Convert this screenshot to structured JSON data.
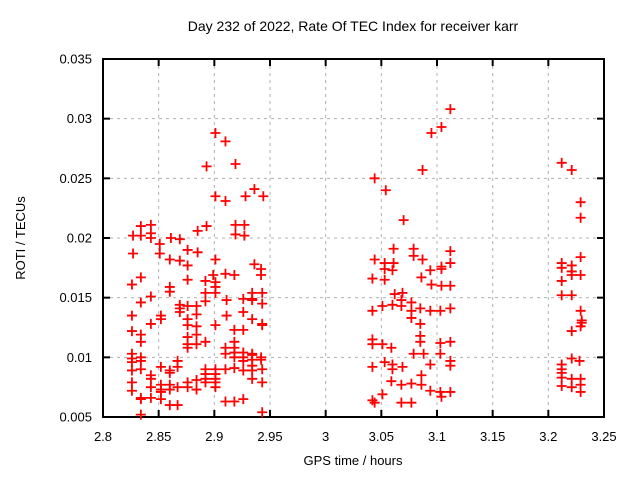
{
  "style": {
    "background_color": "#ffffff",
    "border_color": "#000000",
    "grid_color": "#b0b0b0",
    "text_color": "#000000",
    "marker_color": "#ff0000"
  },
  "chart_data": {
    "type": "scatter",
    "title": "Day 232 of 2022, Rate Of TEC Index for receiver karr",
    "xlabel": "GPS time / hours",
    "ylabel": "ROTI / TECUs",
    "xlim": [
      2.8,
      3.25
    ],
    "ylim": [
      0.005,
      0.035
    ],
    "grid": true,
    "legend": "none",
    "marker": "plus",
    "xticks": [
      2.8,
      2.85,
      2.9,
      2.95,
      3.0,
      3.05,
      3.1,
      3.15,
      3.2,
      3.25
    ],
    "xtick_labels": [
      "2.8",
      "2.85",
      "2.9",
      "2.95",
      "3",
      "3.05",
      "3.1",
      "3.15",
      "3.2",
      "3.25"
    ],
    "yticks": [
      0.005,
      0.01,
      0.015,
      0.02,
      0.025,
      0.03,
      0.035
    ],
    "ytick_labels": [
      "0.005",
      "0.01",
      "0.015",
      "0.02",
      "0.025",
      "0.03",
      "0.035"
    ],
    "series": [
      {
        "name": "ROTI",
        "color": "#ff0000",
        "marker": "plus",
        "points": [
          [
            2.834,
            0.021
          ],
          [
            2.843,
            0.0211
          ],
          [
            2.827,
            0.0202
          ],
          [
            2.834,
            0.0202
          ],
          [
            2.843,
            0.0204
          ],
          [
            2.843,
            0.02
          ],
          [
            2.861,
            0.02
          ],
          [
            2.869,
            0.0199
          ],
          [
            2.885,
            0.0206
          ],
          [
            2.851,
            0.0195
          ],
          [
            2.851,
            0.0187
          ],
          [
            2.827,
            0.0187
          ],
          [
            2.876,
            0.019
          ],
          [
            2.885,
            0.0188
          ],
          [
            2.86,
            0.0182
          ],
          [
            2.869,
            0.0181
          ],
          [
            2.876,
            0.0177
          ],
          [
            2.901,
            0.0288
          ],
          [
            2.91,
            0.0281
          ],
          [
            2.893,
            0.026
          ],
          [
            2.919,
            0.0262
          ],
          [
            2.901,
            0.0235
          ],
          [
            2.91,
            0.0231
          ],
          [
            2.928,
            0.0235
          ],
          [
            2.936,
            0.0241
          ],
          [
            2.944,
            0.0235
          ],
          [
            2.893,
            0.021
          ],
          [
            2.919,
            0.0211
          ],
          [
            2.927,
            0.0211
          ],
          [
            2.919,
            0.0203
          ],
          [
            2.927,
            0.0202
          ],
          [
            2.901,
            0.0182
          ],
          [
            2.936,
            0.0178
          ],
          [
            2.942,
            0.0174
          ],
          [
            2.834,
            0.0167
          ],
          [
            2.826,
            0.0161
          ],
          [
            2.876,
            0.0165
          ],
          [
            2.86,
            0.0159
          ],
          [
            2.86,
            0.0155
          ],
          [
            2.843,
            0.0151
          ],
          [
            2.834,
            0.0146
          ],
          [
            2.852,
            0.0135
          ],
          [
            2.852,
            0.0132
          ],
          [
            2.869,
            0.0144
          ],
          [
            2.869,
            0.0141
          ],
          [
            2.869,
            0.0138
          ],
          [
            2.876,
            0.0143
          ],
          [
            2.884,
            0.0143
          ],
          [
            2.884,
            0.0136
          ],
          [
            2.826,
            0.0135
          ],
          [
            2.843,
            0.0128
          ],
          [
            2.876,
            0.0132
          ],
          [
            2.876,
            0.0127
          ],
          [
            2.884,
            0.0126
          ],
          [
            2.826,
            0.0122
          ],
          [
            2.834,
            0.0119
          ],
          [
            2.834,
            0.0113
          ],
          [
            2.876,
            0.0117
          ],
          [
            2.876,
            0.0111
          ],
          [
            2.876,
            0.0108
          ],
          [
            2.884,
            0.0119
          ],
          [
            2.884,
            0.0111
          ],
          [
            2.826,
            0.0103
          ],
          [
            2.826,
            0.0099
          ],
          [
            2.826,
            0.0096
          ],
          [
            2.826,
            0.0089
          ],
          [
            2.834,
            0.01
          ],
          [
            2.834,
            0.0097
          ],
          [
            2.834,
            0.009
          ],
          [
            2.852,
            0.0092
          ],
          [
            2.843,
            0.0085
          ],
          [
            2.843,
            0.0082
          ],
          [
            2.86,
            0.0089
          ],
          [
            2.86,
            0.0087
          ],
          [
            2.867,
            0.0097
          ],
          [
            2.867,
            0.0092
          ],
          [
            2.826,
            0.0079
          ],
          [
            2.826,
            0.0072
          ],
          [
            2.834,
            0.0066
          ],
          [
            2.834,
            0.0065
          ],
          [
            2.843,
            0.0075
          ],
          [
            2.843,
            0.0066
          ],
          [
            2.852,
            0.0077
          ],
          [
            2.852,
            0.0073
          ],
          [
            2.852,
            0.0071
          ],
          [
            2.852,
            0.0065
          ],
          [
            2.86,
            0.0077
          ],
          [
            2.86,
            0.0073
          ],
          [
            2.86,
            0.006
          ],
          [
            2.867,
            0.0075
          ],
          [
            2.867,
            0.006
          ],
          [
            2.876,
            0.0079
          ],
          [
            2.876,
            0.0075
          ],
          [
            2.884,
            0.0081
          ],
          [
            2.884,
            0.0073
          ],
          [
            2.834,
            0.0052
          ],
          [
            2.899,
            0.0169
          ],
          [
            2.91,
            0.017
          ],
          [
            2.918,
            0.0169
          ],
          [
            2.942,
            0.0169
          ],
          [
            2.892,
            0.0164
          ],
          [
            2.901,
            0.0163
          ],
          [
            2.901,
            0.0159
          ],
          [
            2.892,
            0.0154
          ],
          [
            2.901,
            0.0154
          ],
          [
            2.892,
            0.0147
          ],
          [
            2.911,
            0.0148
          ],
          [
            2.926,
            0.0149
          ],
          [
            2.934,
            0.0154
          ],
          [
            2.934,
            0.0149
          ],
          [
            2.943,
            0.0154
          ],
          [
            2.943,
            0.0145
          ],
          [
            2.934,
            0.0148
          ],
          [
            2.926,
            0.0138
          ],
          [
            2.911,
            0.0135
          ],
          [
            2.934,
            0.0132
          ],
          [
            2.943,
            0.0128
          ],
          [
            2.943,
            0.0127
          ],
          [
            2.901,
            0.0127
          ],
          [
            2.918,
            0.0123
          ],
          [
            2.926,
            0.0123
          ],
          [
            2.892,
            0.0113
          ],
          [
            2.918,
            0.0113
          ],
          [
            2.918,
            0.0108
          ],
          [
            2.918,
            0.0104
          ],
          [
            2.918,
            0.01
          ],
          [
            2.91,
            0.0108
          ],
          [
            2.91,
            0.0103
          ],
          [
            2.926,
            0.0104
          ],
          [
            2.926,
            0.01
          ],
          [
            2.926,
            0.0097
          ],
          [
            2.934,
            0.0103
          ],
          [
            2.934,
            0.0102
          ],
          [
            2.934,
            0.0098
          ],
          [
            2.934,
            0.0093
          ],
          [
            2.934,
            0.0089
          ],
          [
            2.942,
            0.01
          ],
          [
            2.942,
            0.0098
          ],
          [
            2.943,
            0.009
          ],
          [
            2.892,
            0.009
          ],
          [
            2.892,
            0.0086
          ],
          [
            2.901,
            0.009
          ],
          [
            2.901,
            0.0086
          ],
          [
            2.901,
            0.0082
          ],
          [
            2.91,
            0.009
          ],
          [
            2.918,
            0.0091
          ],
          [
            2.926,
            0.0089
          ],
          [
            2.892,
            0.0082
          ],
          [
            2.892,
            0.0079
          ],
          [
            2.901,
            0.0079
          ],
          [
            2.901,
            0.0075
          ],
          [
            2.934,
            0.0082
          ],
          [
            2.943,
            0.0079
          ],
          [
            2.91,
            0.0063
          ],
          [
            2.918,
            0.0063
          ],
          [
            2.926,
            0.0065
          ],
          [
            2.943,
            0.0054
          ],
          [
            3.112,
            0.0308
          ],
          [
            3.104,
            0.0293
          ],
          [
            3.095,
            0.0288
          ],
          [
            3.087,
            0.0257
          ],
          [
            3.044,
            0.025
          ],
          [
            3.054,
            0.024
          ],
          [
            3.07,
            0.0215
          ],
          [
            3.061,
            0.0191
          ],
          [
            3.079,
            0.0191
          ],
          [
            3.079,
            0.0185
          ],
          [
            3.112,
            0.0189
          ],
          [
            3.044,
            0.0182
          ],
          [
            3.053,
            0.0179
          ],
          [
            3.061,
            0.0179
          ],
          [
            3.087,
            0.0182
          ],
          [
            3.104,
            0.0176
          ],
          [
            3.112,
            0.0179
          ],
          [
            3.053,
            0.0174
          ],
          [
            3.06,
            0.0173
          ],
          [
            3.042,
            0.0166
          ],
          [
            3.053,
            0.0165
          ],
          [
            3.086,
            0.0167
          ],
          [
            3.094,
            0.0173
          ],
          [
            3.104,
            0.0174
          ],
          [
            3.095,
            0.0161
          ],
          [
            3.104,
            0.016
          ],
          [
            3.112,
            0.016
          ],
          [
            3.062,
            0.0153
          ],
          [
            3.069,
            0.0154
          ],
          [
            3.068,
            0.0148
          ],
          [
            3.068,
            0.0143
          ],
          [
            3.077,
            0.0146
          ],
          [
            3.077,
            0.0139
          ],
          [
            3.077,
            0.0133
          ],
          [
            3.042,
            0.0139
          ],
          [
            3.051,
            0.0143
          ],
          [
            3.06,
            0.0144
          ],
          [
            3.085,
            0.0141
          ],
          [
            3.094,
            0.0139
          ],
          [
            3.103,
            0.0139
          ],
          [
            3.112,
            0.0141
          ],
          [
            3.085,
            0.0128
          ],
          [
            3.085,
            0.0118
          ],
          [
            3.085,
            0.0113
          ],
          [
            3.042,
            0.0115
          ],
          [
            3.042,
            0.0111
          ],
          [
            3.051,
            0.0111
          ],
          [
            3.059,
            0.0108
          ],
          [
            3.103,
            0.0112
          ],
          [
            3.112,
            0.0113
          ],
          [
            3.103,
            0.0103
          ],
          [
            3.079,
            0.0103
          ],
          [
            3.088,
            0.0103
          ],
          [
            3.112,
            0.0097
          ],
          [
            3.112,
            0.0093
          ],
          [
            3.042,
            0.0092
          ],
          [
            3.053,
            0.0096
          ],
          [
            3.06,
            0.0094
          ],
          [
            3.06,
            0.009
          ],
          [
            3.069,
            0.0092
          ],
          [
            3.094,
            0.0094
          ],
          [
            3.086,
            0.0085
          ],
          [
            3.059,
            0.008
          ],
          [
            3.068,
            0.0077
          ],
          [
            3.077,
            0.0078
          ],
          [
            3.086,
            0.0077
          ],
          [
            3.094,
            0.0072
          ],
          [
            3.103,
            0.0071
          ],
          [
            3.104,
            0.0067
          ],
          [
            3.112,
            0.0071
          ],
          [
            3.051,
            0.0069
          ],
          [
            3.042,
            0.0064
          ],
          [
            3.044,
            0.0062
          ],
          [
            3.068,
            0.0062
          ],
          [
            3.077,
            0.0062
          ],
          [
            3.212,
            0.0263
          ],
          [
            3.221,
            0.0257
          ],
          [
            3.229,
            0.023
          ],
          [
            3.229,
            0.0217
          ],
          [
            3.229,
            0.0184
          ],
          [
            3.212,
            0.0179
          ],
          [
            3.212,
            0.0175
          ],
          [
            3.221,
            0.0177
          ],
          [
            3.221,
            0.0172
          ],
          [
            3.221,
            0.0169
          ],
          [
            3.229,
            0.0169
          ],
          [
            3.212,
            0.0164
          ],
          [
            3.212,
            0.0152
          ],
          [
            3.221,
            0.0152
          ],
          [
            3.229,
            0.0139
          ],
          [
            3.23,
            0.0131
          ],
          [
            3.23,
            0.0129
          ],
          [
            3.229,
            0.0126
          ],
          [
            3.221,
            0.0122
          ],
          [
            3.221,
            0.0099
          ],
          [
            3.228,
            0.0097
          ],
          [
            3.212,
            0.0094
          ],
          [
            3.212,
            0.009
          ],
          [
            3.212,
            0.0087
          ],
          [
            3.212,
            0.0083
          ],
          [
            3.221,
            0.0082
          ],
          [
            3.229,
            0.0082
          ],
          [
            3.212,
            0.0076
          ],
          [
            3.221,
            0.0075
          ],
          [
            3.229,
            0.0077
          ],
          [
            3.229,
            0.0071
          ]
        ]
      }
    ]
  }
}
